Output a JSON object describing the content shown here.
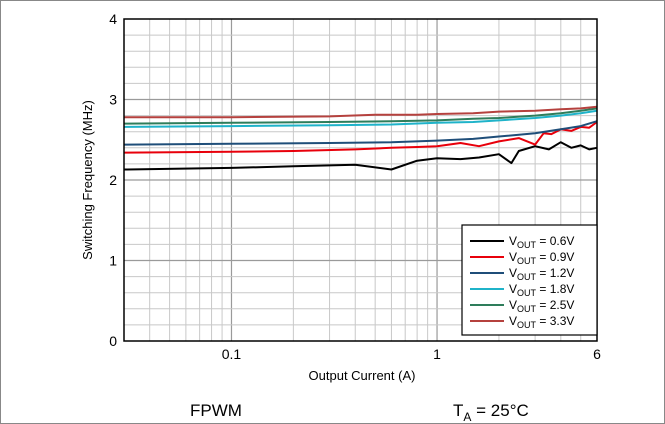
{
  "chart_data": {
    "type": "line",
    "xscale": "log",
    "xlim": [
      0.03,
      6
    ],
    "ylim": [
      0,
      4
    ],
    "grid": true,
    "legend_position": "bottom-right",
    "xlabel": "Output Current (A)",
    "ylabel": "Switching Frequency (MHz)",
    "x_ticks": [
      {
        "value": 0.1,
        "label": "0.1"
      },
      {
        "value": 1,
        "label": "1"
      },
      {
        "value": 6,
        "label": "6"
      }
    ],
    "y_ticks": [
      {
        "value": 0,
        "label": "0"
      },
      {
        "value": 1,
        "label": "1"
      },
      {
        "value": 2,
        "label": "2"
      },
      {
        "value": 3,
        "label": "3"
      },
      {
        "value": 4,
        "label": "4"
      }
    ],
    "series": [
      {
        "name_prefix": "V",
        "name_sub": "OUT",
        "name_suffix": " = 0.6V",
        "color": "#000000",
        "x": [
          0.03,
          0.1,
          0.2,
          0.4,
          0.6,
          0.8,
          1.0,
          1.3,
          1.6,
          2.0,
          2.3,
          2.5,
          3.0,
          3.5,
          4.0,
          4.5,
          5.0,
          5.5,
          6.0
        ],
        "y": [
          2.13,
          2.15,
          2.17,
          2.19,
          2.13,
          2.24,
          2.27,
          2.26,
          2.28,
          2.32,
          2.21,
          2.36,
          2.42,
          2.38,
          2.47,
          2.4,
          2.43,
          2.38,
          2.4
        ]
      },
      {
        "name_prefix": "V",
        "name_sub": "OUT",
        "name_suffix": " = 0.9V",
        "color": "#e8000b",
        "x": [
          0.03,
          0.1,
          0.2,
          0.4,
          0.6,
          0.8,
          1.0,
          1.3,
          1.6,
          2.0,
          2.5,
          3.0,
          3.3,
          3.6,
          4.0,
          4.5,
          5.0,
          5.5,
          6.0
        ],
        "y": [
          2.34,
          2.35,
          2.36,
          2.38,
          2.4,
          2.41,
          2.42,
          2.46,
          2.42,
          2.48,
          2.52,
          2.44,
          2.58,
          2.57,
          2.63,
          2.61,
          2.66,
          2.65,
          2.72
        ]
      },
      {
        "name_prefix": "V",
        "name_sub": "OUT",
        "name_suffix": " = 1.2V",
        "color": "#1f4e79",
        "x": [
          0.03,
          0.1,
          0.3,
          0.6,
          1.0,
          1.5,
          2.0,
          3.0,
          4.0,
          5.0,
          6.0
        ],
        "y": [
          2.44,
          2.45,
          2.46,
          2.47,
          2.49,
          2.51,
          2.54,
          2.58,
          2.63,
          2.67,
          2.73
        ]
      },
      {
        "name_prefix": "V",
        "name_sub": "OUT",
        "name_suffix": " = 1.8V",
        "color": "#1fb3c9",
        "x": [
          0.03,
          0.1,
          0.3,
          0.6,
          1.0,
          1.5,
          2.0,
          3.0,
          4.0,
          5.0,
          6.0
        ],
        "y": [
          2.66,
          2.67,
          2.68,
          2.69,
          2.71,
          2.72,
          2.74,
          2.77,
          2.8,
          2.83,
          2.86
        ]
      },
      {
        "name_prefix": "V",
        "name_sub": "OUT",
        "name_suffix": " = 2.5V",
        "color": "#2e7d5b",
        "x": [
          0.03,
          0.1,
          0.3,
          0.6,
          1.0,
          1.5,
          2.0,
          3.0,
          4.0,
          5.0,
          6.0
        ],
        "y": [
          2.7,
          2.71,
          2.72,
          2.73,
          2.74,
          2.76,
          2.77,
          2.8,
          2.83,
          2.86,
          2.89
        ]
      },
      {
        "name_prefix": "V",
        "name_sub": "OUT",
        "name_suffix": " = 3.3V",
        "color": "#b5413e",
        "x": [
          0.03,
          0.1,
          0.3,
          0.5,
          0.8,
          1.0,
          1.5,
          2.0,
          3.0,
          4.0,
          5.0,
          6.0
        ],
        "y": [
          2.78,
          2.78,
          2.79,
          2.81,
          2.81,
          2.82,
          2.83,
          2.85,
          2.86,
          2.88,
          2.89,
          2.91
        ]
      }
    ],
    "annotations": {
      "mode": "FPWM",
      "temp_prefix": "T",
      "temp_sub": "A",
      "temp_suffix": " = 25°C"
    }
  }
}
